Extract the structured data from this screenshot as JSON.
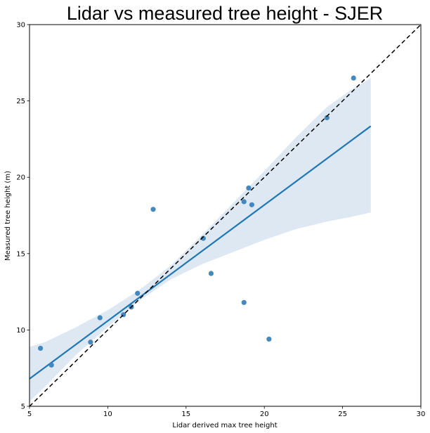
{
  "chart_data": {
    "type": "scatter",
    "title": "Lidar vs measured tree height - SJER",
    "xlabel": "Lidar derived max tree height",
    "ylabel": "Measured tree height (m)",
    "xlim": [
      5,
      30
    ],
    "ylim": [
      5,
      30
    ],
    "x_ticks": [
      "5",
      "10",
      "15",
      "20",
      "25",
      "30"
    ],
    "y_ticks": [
      "5",
      "10",
      "15",
      "20",
      "25",
      "30"
    ],
    "grid": false,
    "points": [
      {
        "x": 5.7,
        "y": 8.8
      },
      {
        "x": 6.4,
        "y": 7.7
      },
      {
        "x": 8.9,
        "y": 9.2
      },
      {
        "x": 9.5,
        "y": 10.8
      },
      {
        "x": 11.0,
        "y": 11.0
      },
      {
        "x": 11.5,
        "y": 11.5
      },
      {
        "x": 11.9,
        "y": 12.4
      },
      {
        "x": 12.9,
        "y": 17.9
      },
      {
        "x": 16.1,
        "y": 16.0
      },
      {
        "x": 16.6,
        "y": 13.7
      },
      {
        "x": 18.7,
        "y": 11.8
      },
      {
        "x": 18.7,
        "y": 18.4
      },
      {
        "x": 19.0,
        "y": 19.3
      },
      {
        "x": 19.2,
        "y": 18.2
      },
      {
        "x": 20.3,
        "y": 9.4
      },
      {
        "x": 24.0,
        "y": 23.9
      },
      {
        "x": 25.7,
        "y": 26.5
      }
    ],
    "regression_line": {
      "x": [
        5.0,
        26.8
      ],
      "y": [
        6.8,
        23.35
      ]
    },
    "confidence_band": {
      "x": [
        5.0,
        6.0,
        8.0,
        10.0,
        12.0,
        14.0,
        16.0,
        18.0,
        20.0,
        22.0,
        24.0,
        25.5,
        26.8
      ],
      "lower": [
        5.3,
        6.3,
        8.4,
        10.2,
        11.9,
        13.3,
        14.3,
        15.1,
        15.9,
        16.6,
        17.1,
        17.4,
        17.7
      ],
      "upper": [
        8.9,
        9.2,
        10.2,
        11.3,
        12.6,
        14.2,
        16.2,
        18.3,
        20.4,
        22.6,
        24.6,
        25.7,
        26.5
      ]
    },
    "reference_line": {
      "x": [
        5,
        30
      ],
      "y": [
        5,
        30
      ],
      "style": "dashed"
    },
    "colors": {
      "points": "#3a82b8",
      "regression": "#1f77b4",
      "band": "#dde8f3",
      "reference": "#000000"
    }
  }
}
